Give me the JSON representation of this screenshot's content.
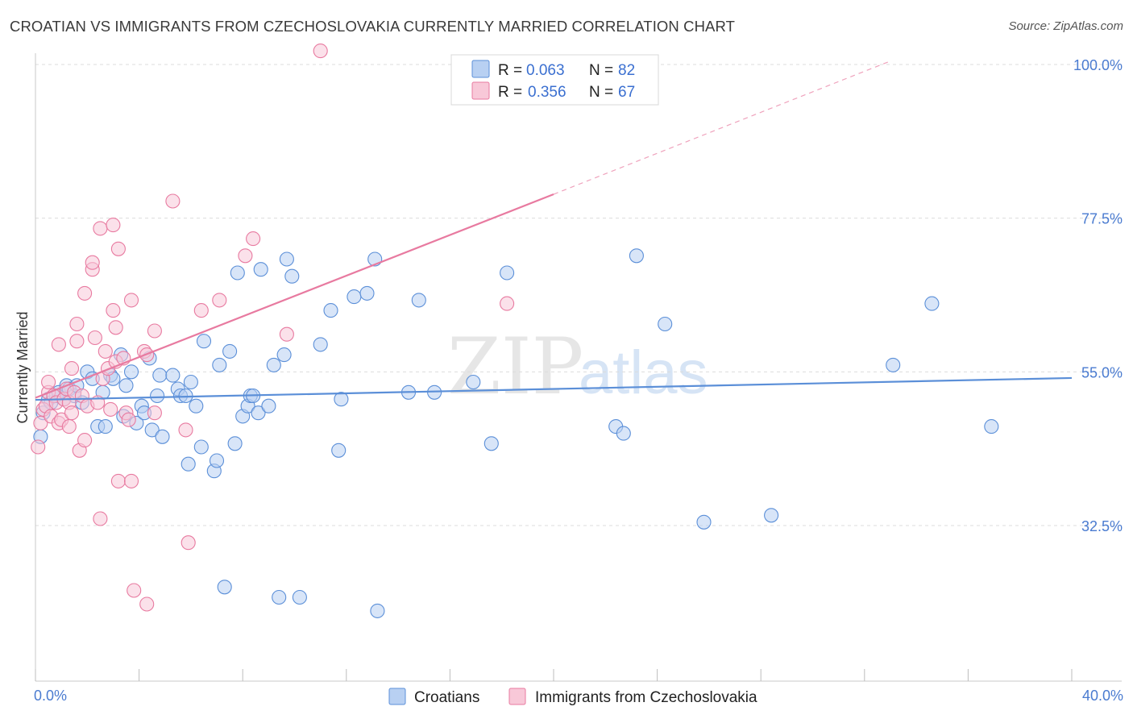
{
  "chart_data": {
    "type": "scatter",
    "title": "CROATIAN VS IMMIGRANTS FROM CZECHOSLOVAKIA CURRENTLY MARRIED CORRELATION CHART",
    "source": "Source: ZipAtlas.com",
    "ylabel": "Currently Married",
    "xlim": [
      0,
      40
    ],
    "ylim": [
      10,
      102
    ],
    "x_tick_labels": [
      {
        "value": 0,
        "label": "0.0%"
      },
      {
        "value": 40,
        "label": "40.0%"
      }
    ],
    "x_minor_ticks": [
      0,
      4,
      8,
      12,
      16,
      20,
      24,
      28,
      32,
      36,
      40
    ],
    "y_tick_labels": [
      {
        "value": 32.5,
        "label": "32.5%"
      },
      {
        "value": 55.0,
        "label": "55.0%"
      },
      {
        "value": 77.5,
        "label": "77.5%"
      },
      {
        "value": 100.0,
        "label": "100.0%"
      }
    ],
    "watermark": {
      "part1": "ZIP",
      "part2": "atlas"
    },
    "legend": {
      "r_label": "R =",
      "n_label": "N =",
      "entries": [
        {
          "name": "Croatians",
          "r": "0.063",
          "n": "82"
        },
        {
          "name": "Immigrants from Czechoslovakia",
          "r": "0.356",
          "n": "67"
        }
      ]
    },
    "series": [
      {
        "name": "Croatians",
        "color": "#5b8fd8",
        "fill": "#b8d0f2",
        "trend": {
          "x0": 0,
          "y0": 50.9,
          "x1": 40,
          "y1": 54.1
        },
        "points": [
          [
            0.2,
            45.5
          ],
          [
            0.3,
            49
          ],
          [
            0.5,
            51
          ],
          [
            0.6,
            50.5
          ],
          [
            0.8,
            51.5
          ],
          [
            0.9,
            52
          ],
          [
            1.1,
            51
          ],
          [
            1.2,
            53
          ],
          [
            1.3,
            52.5
          ],
          [
            1.5,
            51.5
          ],
          [
            1.6,
            53
          ],
          [
            1.8,
            50.5
          ],
          [
            2.0,
            55
          ],
          [
            2.2,
            54
          ],
          [
            2.4,
            47
          ],
          [
            2.6,
            52
          ],
          [
            2.7,
            47
          ],
          [
            2.9,
            54.5
          ],
          [
            3.0,
            54
          ],
          [
            3.3,
            57.5
          ],
          [
            3.4,
            48.5
          ],
          [
            3.5,
            53
          ],
          [
            3.7,
            55
          ],
          [
            3.9,
            47.5
          ],
          [
            4.1,
            50
          ],
          [
            4.2,
            49
          ],
          [
            4.4,
            57
          ],
          [
            4.5,
            46.5
          ],
          [
            4.7,
            51.5
          ],
          [
            4.9,
            45.5
          ],
          [
            4.8,
            54.5
          ],
          [
            5.3,
            54.5
          ],
          [
            5.5,
            52.5
          ],
          [
            5.6,
            51.5
          ],
          [
            5.8,
            51.5
          ],
          [
            5.9,
            41.5
          ],
          [
            6.0,
            53.5
          ],
          [
            6.2,
            50
          ],
          [
            6.4,
            44
          ],
          [
            6.5,
            59.5
          ],
          [
            6.9,
            40.5
          ],
          [
            7.0,
            42
          ],
          [
            7.1,
            56
          ],
          [
            7.3,
            23.5
          ],
          [
            7.5,
            58
          ],
          [
            7.7,
            44.5
          ],
          [
            7.8,
            69.5
          ],
          [
            8.0,
            48.5
          ],
          [
            8.2,
            50
          ],
          [
            8.3,
            51.5
          ],
          [
            8.4,
            51.5
          ],
          [
            8.6,
            49
          ],
          [
            8.7,
            70
          ],
          [
            9.0,
            50
          ],
          [
            9.2,
            56
          ],
          [
            9.4,
            22
          ],
          [
            9.6,
            57.5
          ],
          [
            9.7,
            71.5
          ],
          [
            9.9,
            69
          ],
          [
            10.2,
            22
          ],
          [
            11.0,
            59
          ],
          [
            11.4,
            64
          ],
          [
            11.7,
            43.5
          ],
          [
            11.8,
            51
          ],
          [
            12.3,
            66
          ],
          [
            12.8,
            66.5
          ],
          [
            13.2,
            20
          ],
          [
            13.1,
            71.5
          ],
          [
            14.4,
            52
          ],
          [
            14.8,
            65.5
          ],
          [
            15.4,
            52
          ],
          [
            16.9,
            53.5
          ],
          [
            17.6,
            44.5
          ],
          [
            18.2,
            69.5
          ],
          [
            22.4,
            47
          ],
          [
            22.7,
            46
          ],
          [
            23.2,
            72
          ],
          [
            24.3,
            62
          ],
          [
            25.8,
            33
          ],
          [
            28.4,
            34
          ],
          [
            33.1,
            56
          ],
          [
            34.6,
            65
          ],
          [
            36.9,
            47
          ]
        ]
      },
      {
        "name": "Immigrants from Czechoslovakia",
        "color": "#e87aa0",
        "fill": "#f8c8d8",
        "trend": {
          "x0": 0,
          "y0": 51.2,
          "x1": 20,
          "y1": 81.0
        },
        "trend_dashed": {
          "x0": 20,
          "y0": 81.0,
          "x1": 33,
          "y1": 100.5
        },
        "points": [
          [
            0.1,
            44
          ],
          [
            0.2,
            47.5
          ],
          [
            0.3,
            49.5
          ],
          [
            0.4,
            50
          ],
          [
            0.5,
            52
          ],
          [
            0.5,
            53.5
          ],
          [
            0.6,
            48.5
          ],
          [
            0.7,
            51.5
          ],
          [
            0.8,
            50.5
          ],
          [
            0.9,
            47.5
          ],
          [
            0.9,
            59
          ],
          [
            1.0,
            48
          ],
          [
            1.1,
            51
          ],
          [
            1.2,
            52.5
          ],
          [
            1.3,
            47
          ],
          [
            1.3,
            50.5
          ],
          [
            1.4,
            55.5
          ],
          [
            1.4,
            49
          ],
          [
            1.5,
            52
          ],
          [
            1.6,
            59.5
          ],
          [
            1.6,
            62
          ],
          [
            1.7,
            43.5
          ],
          [
            1.8,
            51.5
          ],
          [
            1.9,
            45
          ],
          [
            1.9,
            66.5
          ],
          [
            2.0,
            50
          ],
          [
            2.2,
            70
          ],
          [
            2.2,
            71
          ],
          [
            2.3,
            60
          ],
          [
            2.4,
            50.5
          ],
          [
            2.5,
            76
          ],
          [
            2.5,
            33.5
          ],
          [
            2.6,
            54
          ],
          [
            2.7,
            58
          ],
          [
            2.8,
            55.5
          ],
          [
            2.9,
            49.5
          ],
          [
            3.0,
            76.5
          ],
          [
            3.0,
            64
          ],
          [
            3.1,
            56.5
          ],
          [
            3.1,
            61.5
          ],
          [
            3.2,
            39
          ],
          [
            3.2,
            73
          ],
          [
            3.4,
            57
          ],
          [
            3.5,
            49
          ],
          [
            3.6,
            48
          ],
          [
            3.7,
            39
          ],
          [
            3.7,
            65.5
          ],
          [
            3.8,
            23
          ],
          [
            4.2,
            58
          ],
          [
            4.3,
            57.5
          ],
          [
            4.3,
            21
          ],
          [
            4.6,
            49
          ],
          [
            4.6,
            61
          ],
          [
            5.3,
            80
          ],
          [
            5.8,
            46.5
          ],
          [
            5.9,
            30
          ],
          [
            6.4,
            64
          ],
          [
            7.1,
            65.5
          ],
          [
            8.1,
            72
          ],
          [
            8.4,
            74.5
          ],
          [
            9.7,
            60.5
          ],
          [
            11.0,
            102
          ],
          [
            18.2,
            65
          ]
        ]
      }
    ]
  }
}
